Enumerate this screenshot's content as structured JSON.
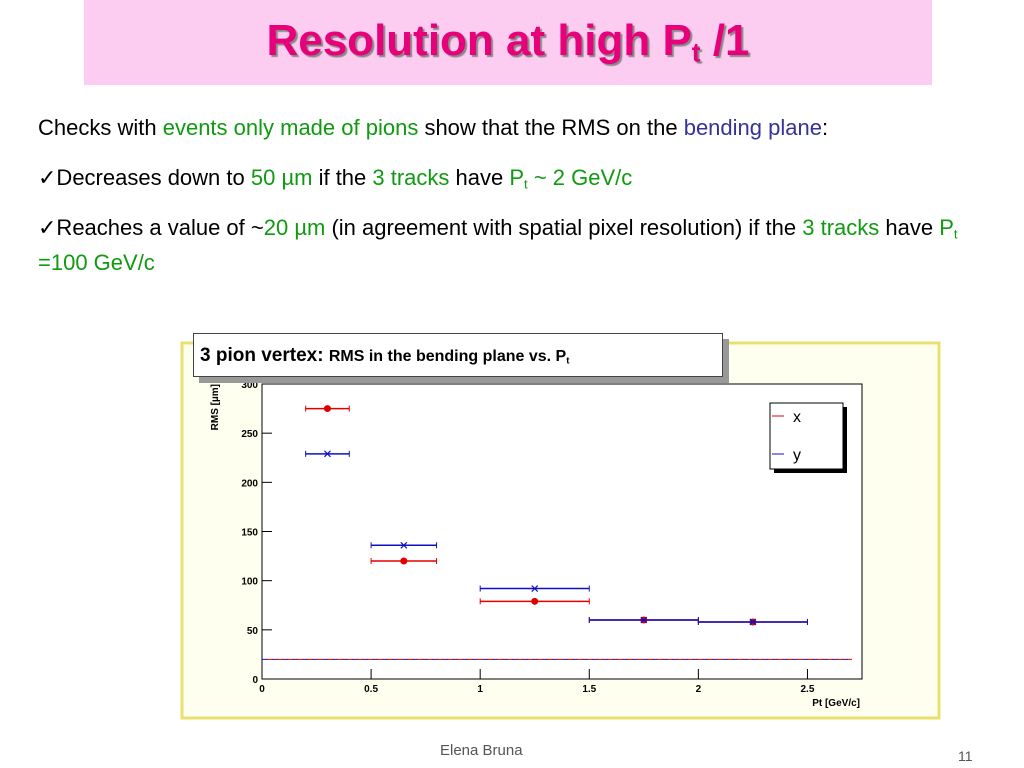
{
  "title": [
    {
      "text": "Resolution at high P"
    },
    {
      "text": "t",
      "sub": true
    },
    {
      "text": " /1"
    }
  ],
  "paragraphs": [
    [
      {
        "text": "Checks with "
      },
      {
        "text": "events only made of pions",
        "color": "#109a10"
      },
      {
        "text": " show that the RMS on the "
      },
      {
        "text": "bending plane",
        "color": "#333399"
      },
      {
        "text": ":"
      }
    ],
    [
      {
        "text": "✓Decreases down to "
      },
      {
        "text": "50 µm",
        "color": "#109a10"
      },
      {
        "text": " if the "
      },
      {
        "text": "3 tracks",
        "color": "#109a10"
      },
      {
        "text": " have "
      },
      {
        "text": "P",
        "color": "#109a10"
      },
      {
        "text": "t",
        "sub": true,
        "color": "#109a10"
      },
      {
        "text": " ~ 2 GeV/c",
        "color": "#109a10"
      }
    ],
    [
      {
        "text": "✓Reaches a value of ~"
      },
      {
        "text": "20 µm",
        "color": "#109a10"
      },
      {
        "text": " (in agreement with spatial pixel resolution) if the "
      },
      {
        "text": "3 tracks",
        "color": "#109a10"
      },
      {
        "text": " have "
      },
      {
        "text": "P",
        "color": "#109a10"
      },
      {
        "text": "t",
        "sub": true,
        "color": "#109a10"
      },
      {
        "text": " =100 GeV/c",
        "color": "#109a10"
      }
    ]
  ],
  "footer": {
    "author": "Elena Bruna",
    "page": "11"
  },
  "chart_data": {
    "type": "errorbar",
    "title": [
      {
        "text": "3 pion vertex: "
      },
      {
        "text": "RMS in the bending plane vs. P"
      },
      {
        "text": "t",
        "sub": true
      }
    ],
    "x_label": "Pt [GeV/c]",
    "y_label": "RMS [µm]",
    "x": [
      0.3,
      0.65,
      1.25,
      1.75,
      2.25
    ],
    "xerr": [
      0.1,
      0.15,
      0.25,
      0.25,
      0.25
    ],
    "series": [
      {
        "name": "x",
        "color": "#e00000",
        "marker": "circle",
        "values": [
          275,
          120,
          79,
          60,
          58
        ]
      },
      {
        "name": "y",
        "color": "#1010c0",
        "marker": "cross",
        "values": [
          229,
          136,
          92,
          60,
          58
        ]
      }
    ],
    "hline": 20,
    "xlim": [
      0,
      2.75
    ],
    "ylim": [
      0,
      300
    ],
    "xticks": [
      0,
      0.5,
      1,
      1.5,
      2,
      2.5
    ],
    "yticks": [
      0,
      50,
      100,
      150,
      200,
      250,
      300
    ]
  }
}
